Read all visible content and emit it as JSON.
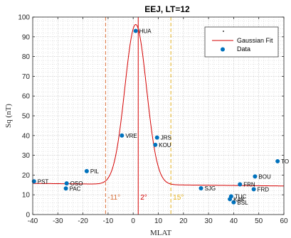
{
  "chart_data": {
    "type": "scatter",
    "title": "EEJ, LT=12",
    "xlabel": "MLAT",
    "ylabel": "Sq  (nT)",
    "xlim": [
      -40,
      60
    ],
    "ylim": [
      0,
      100
    ],
    "xticks": [
      -40,
      -30,
      -20,
      -10,
      0,
      10,
      20,
      30,
      40,
      50,
      60
    ],
    "yticks": [
      0,
      10,
      20,
      30,
      40,
      50,
      60,
      70,
      80,
      90,
      100
    ],
    "grid": true,
    "legend_position": "top-right",
    "legend": {
      "entries": [
        {
          "label": ""
        },
        {
          "label": "Gaussian Fit"
        },
        {
          "label": "Data"
        }
      ]
    },
    "colors": {
      "data": "#0072BD",
      "fit": "#d40000",
      "left_line": "#d9703a",
      "center_line": "#d40000",
      "right_line": "#e6b422"
    },
    "series": [
      {
        "name": "Data",
        "points": [
          {
            "label": "PST",
            "x": -39.5,
            "y": 16.8
          },
          {
            "label": "OSO",
            "x": -26.5,
            "y": 15.8
          },
          {
            "label": "PAC",
            "x": -26.8,
            "y": 13.2
          },
          {
            "label": "PIL",
            "x": -18.5,
            "y": 22.0
          },
          {
            "label": "HUA",
            "x": 1.0,
            "y": 93.0
          },
          {
            "label": "VRE",
            "x": -4.5,
            "y": 40.0
          },
          {
            "label": "JRS",
            "x": 9.5,
            "y": 39.0
          },
          {
            "label": "KOU",
            "x": 8.8,
            "y": 35.3
          },
          {
            "label": "SJG",
            "x": 27.0,
            "y": 13.3
          },
          {
            "label": "TUC",
            "x": 39.0,
            "y": 9.2
          },
          {
            "label": "KAK",
            "x": 38.5,
            "y": 7.8
          },
          {
            "label": "BSL",
            "x": 40.0,
            "y": 6.2
          },
          {
            "label": "FRN",
            "x": 42.5,
            "y": 15.3
          },
          {
            "label": "FRD",
            "x": 48.0,
            "y": 12.8
          },
          {
            "label": "BOU",
            "x": 48.5,
            "y": 19.3
          },
          {
            "label": "TO",
            "x": 57.5,
            "y": 27.0
          }
        ]
      },
      {
        "name": "Gaussian Fit",
        "model": "gaussian_plus_linear",
        "amplitude": 81.0,
        "center": 1.0,
        "sigma": 4.3,
        "baseline_intercept": 15.25,
        "baseline_slope": -0.013
      }
    ],
    "vlines": [
      {
        "x": -11,
        "label": "-11°",
        "color": "#d9703a",
        "style": "dashed"
      },
      {
        "x": 2,
        "label": "2°",
        "color": "#d40000",
        "style": "solid"
      },
      {
        "x": 15,
        "label": "15°",
        "color": "#e6b422",
        "style": "dashed"
      }
    ]
  }
}
